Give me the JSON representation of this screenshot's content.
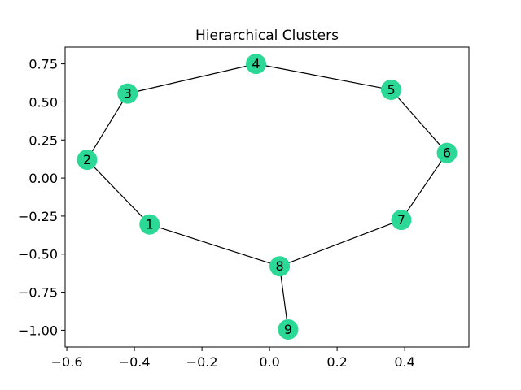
{
  "chart_data": {
    "type": "network",
    "title": "Hierarchical Clusters",
    "xlim": [
      -0.605,
      0.59
    ],
    "ylim": [
      -1.11,
      0.86
    ],
    "xticks": [
      {
        "value": -0.6,
        "label": "−0.6"
      },
      {
        "value": -0.4,
        "label": "−0.4"
      },
      {
        "value": -0.2,
        "label": "−0.2"
      },
      {
        "value": 0.0,
        "label": "0.0"
      },
      {
        "value": 0.2,
        "label": "0.2"
      },
      {
        "value": 0.4,
        "label": "0.4"
      }
    ],
    "yticks": [
      {
        "value": 0.75,
        "label": "0.75"
      },
      {
        "value": 0.5,
        "label": "0.50"
      },
      {
        "value": 0.25,
        "label": "0.25"
      },
      {
        "value": 0.0,
        "label": "0.00"
      },
      {
        "value": -0.25,
        "label": "−0.25"
      },
      {
        "value": -0.5,
        "label": "−0.50"
      },
      {
        "value": -0.75,
        "label": "−0.75"
      },
      {
        "value": -1.0,
        "label": "−1.00"
      }
    ],
    "node_color": "#2bd896",
    "edge_color": "#000000",
    "nodes": [
      {
        "id": "1",
        "label": "1",
        "x": -0.355,
        "y": -0.305
      },
      {
        "id": "2",
        "label": "2",
        "x": -0.54,
        "y": 0.12
      },
      {
        "id": "3",
        "label": "3",
        "x": -0.42,
        "y": 0.555
      },
      {
        "id": "4",
        "label": "4",
        "x": -0.04,
        "y": 0.75
      },
      {
        "id": "5",
        "label": "5",
        "x": 0.36,
        "y": 0.58
      },
      {
        "id": "6",
        "label": "6",
        "x": 0.525,
        "y": 0.165
      },
      {
        "id": "7",
        "label": "7",
        "x": 0.39,
        "y": -0.275
      },
      {
        "id": "8",
        "label": "8",
        "x": 0.03,
        "y": -0.58
      },
      {
        "id": "9",
        "label": "9",
        "x": 0.055,
        "y": -0.995
      }
    ],
    "edges": [
      [
        "1",
        "2"
      ],
      [
        "2",
        "3"
      ],
      [
        "3",
        "4"
      ],
      [
        "4",
        "5"
      ],
      [
        "5",
        "6"
      ],
      [
        "6",
        "7"
      ],
      [
        "7",
        "8"
      ],
      [
        "8",
        "1"
      ],
      [
        "8",
        "9"
      ]
    ]
  }
}
